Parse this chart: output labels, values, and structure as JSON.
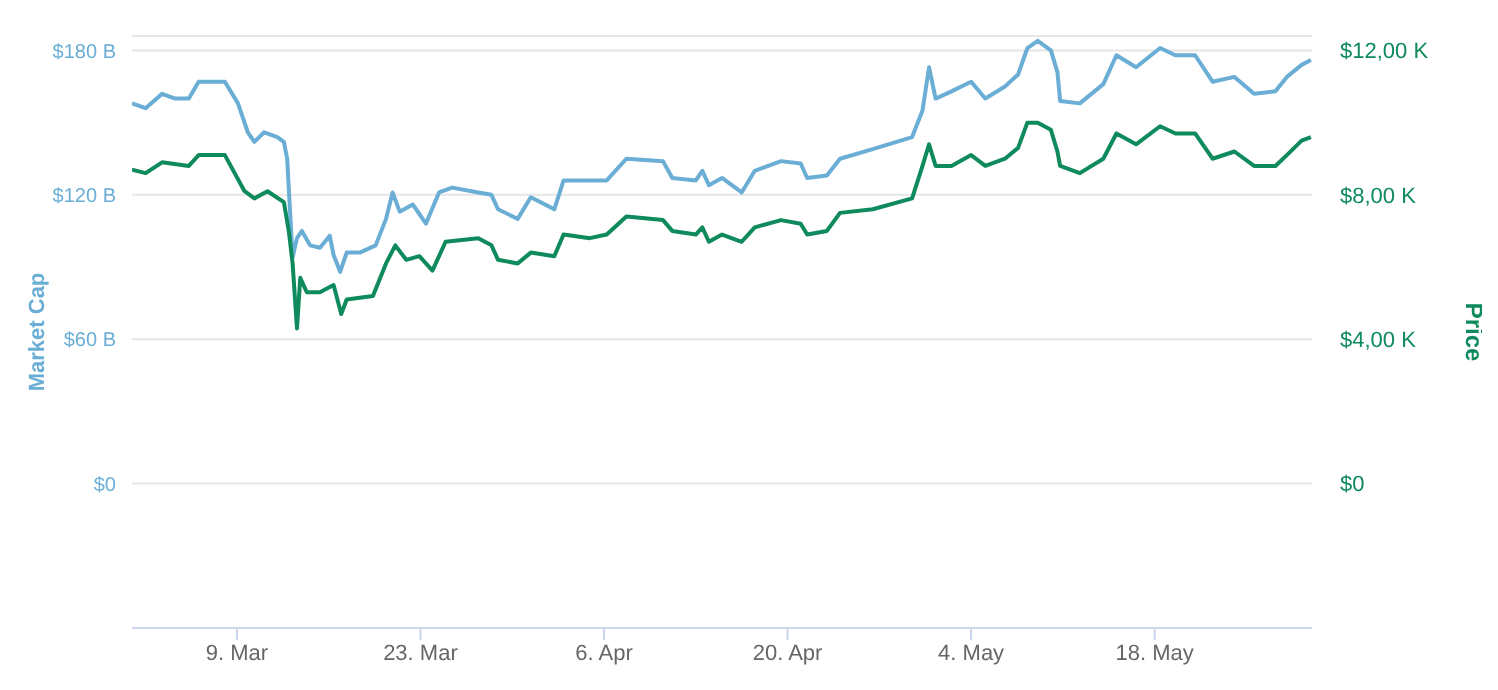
{
  "chart_data": {
    "type": "line",
    "ylabel": "Market Cap",
    "y2label": "Price",
    "xlim": [
      "--03-01",
      "--05-30"
    ],
    "xticks": [
      {
        "value": "--03-09",
        "label": "9. Mar"
      },
      {
        "value": "--03-23",
        "label": "23. Mar"
      },
      {
        "value": "--04-06",
        "label": "6. Apr"
      },
      {
        "value": "--04-20",
        "label": "20. Apr"
      },
      {
        "value": "--05-04",
        "label": "4. May"
      },
      {
        "value": "--05-18",
        "label": "18. May"
      }
    ],
    "ylim": [
      -60,
      186
    ],
    "yticks": [
      {
        "value": 0,
        "label": "$0"
      },
      {
        "value": 60,
        "label": "$60 B"
      },
      {
        "value": 120,
        "label": "$120 B"
      },
      {
        "value": 180,
        "label": "$180 B"
      }
    ],
    "y2lim": [
      -4,
      12.4
    ],
    "y2ticks": [
      {
        "value": 0,
        "label": "$0"
      },
      {
        "value": 4,
        "label": "$4,00 K"
      },
      {
        "value": 8,
        "label": "$8,00 K"
      },
      {
        "value": 12,
        "label": "$12,00 K"
      }
    ],
    "grid": "y",
    "legend": false,
    "marker": "none",
    "line_style": "solid",
    "series": [
      {
        "color": "#6aaed6",
        "x": [
          "--03-01T00:00",
          "--03-02T01:00",
          "--03-03T07:00",
          "--03-04T07:00",
          "--03-05T08:00",
          "--03-06T02:00",
          "--03-08T02:00",
          "--03-09T02:00",
          "--03-09T20:00",
          "--03-10T08:00",
          "--03-11T02:00",
          "--03-12T02:00",
          "--03-12T14:00",
          "--03-12T20:00",
          "--03-13T06:00",
          "--03-13T14:00",
          "--03-13T23:00",
          "--03-14T14:00",
          "--03-15T08:00",
          "--03-16T02:00",
          "--03-16T09:00",
          "--03-16T21:00",
          "--03-17T09:00",
          "--03-18T09:00",
          "--03-19T14:00",
          "--03-20T09:00",
          "--03-20T21:00",
          "--03-21T10:00",
          "--03-22T10:00",
          "--03-23T10:00",
          "--03-24T10:00",
          "--03-25T10:00",
          "--03-27T10:00",
          "--03-28T10:00",
          "--03-28T22:00",
          "--03-30T10:00",
          "--03-31T10:00",
          "--04-02T05:00",
          "--04-02T22:00",
          "--04-04T22:00",
          "--04-06T05:00",
          "--04-07T17:00",
          "--04-10T12:00",
          "--04-11T05:00",
          "--04-13T00:00",
          "--04-13T12:00",
          "--04-14T00:00",
          "--04-15T00:00",
          "--04-16T12:00",
          "--04-17T12:00",
          "--04-19T12:00",
          "--04-21T00:00",
          "--04-21T12:00",
          "--04-23T00:00",
          "--04-24T00:00",
          "--04-26T12:00",
          "--04-29T12:00",
          "--04-30T07:00",
          "--04-30T19:00",
          "--05-01T07:00",
          "--05-02T12:00",
          "--05-04T00:00",
          "--05-05T02:00",
          "--05-06T14:00",
          "--05-07T14:00",
          "--05-08T07:00",
          "--05-09T02:00",
          "--05-10T02:00",
          "--05-10T14:00",
          "--05-10T19:00",
          "--05-12T07:00",
          "--05-14T02:00",
          "--05-15T02:00",
          "--05-16T14:00",
          "--05-18T10:00",
          "--05-19T14:00",
          "--05-21T02:00",
          "--05-22T10:00",
          "--05-24T02:00",
          "--05-25T14:00",
          "--05-27T05:00",
          "--05-28T02:00",
          "--05-29T05:00",
          "--05-29T22:00"
        ],
        "values": [
          158,
          156,
          162,
          160,
          160,
          167,
          167,
          158,
          146,
          142,
          146,
          144,
          142,
          135,
          94,
          102,
          105,
          99,
          98,
          103,
          95,
          88,
          96,
          96,
          99,
          110,
          121,
          113,
          116,
          108,
          121,
          123,
          121,
          120,
          114,
          110,
          119,
          114,
          126,
          126,
          126,
          135,
          134,
          127,
          126,
          130,
          124,
          127,
          121,
          130,
          134,
          133,
          127,
          128,
          135,
          139,
          144,
          155,
          173,
          160,
          163,
          167,
          160,
          165,
          170,
          181,
          184,
          180,
          171,
          159,
          158,
          166,
          178,
          173,
          181,
          178,
          178,
          167,
          169,
          162,
          163,
          169,
          174,
          176
        ]
      },
      {
        "color": "#0f8a5c",
        "axis": "y2",
        "x": [
          "--03-01T00:00",
          "--03-02T01:00",
          "--03-03T07:00",
          "--03-05T08:00",
          "--03-06T02:00",
          "--03-08T02:00",
          "--03-09T14:00",
          "--03-10T08:00",
          "--03-11T08:00",
          "--03-12T14:00",
          "--03-12T23:00",
          "--03-13T06:00",
          "--03-13T14:00",
          "--03-13T20:00",
          "--03-14T08:00",
          "--03-15T08:00",
          "--03-16T09:00",
          "--03-16T23:00",
          "--03-17T09:00",
          "--03-19T09:00",
          "--03-20T09:00",
          "--03-21T02:00",
          "--03-21T22:00",
          "--03-22T22:00",
          "--03-23T22:00",
          "--03-24T22:00",
          "--03-27T10:00",
          "--03-28T10:00",
          "--03-28T22:00",
          "--03-30T10:00",
          "--03-31T10:00",
          "--04-02T05:00",
          "--04-02T22:00",
          "--04-04T22:00",
          "--04-06T05:00",
          "--04-07T17:00",
          "--04-10T12:00",
          "--04-11T05:00",
          "--04-13T00:00",
          "--04-13T12:00",
          "--04-14T00:00",
          "--04-15T00:00",
          "--04-16T12:00",
          "--04-17T12:00",
          "--04-19T12:00",
          "--04-21T00:00",
          "--04-21T12:00",
          "--04-23T00:00",
          "--04-24T00:00",
          "--04-26T12:00",
          "--04-29T12:00",
          "--04-30T07:00",
          "--04-30T19:00",
          "--05-01T07:00",
          "--05-02T12:00",
          "--05-04T00:00",
          "--05-05T02:00",
          "--05-06T14:00",
          "--05-07T14:00",
          "--05-08T07:00",
          "--05-09T02:00",
          "--05-10T02:00",
          "--05-10T14:00",
          "--05-10T19:00",
          "--05-12T07:00",
          "--05-14T02:00",
          "--05-15T02:00",
          "--05-16T14:00",
          "--05-18T10:00",
          "--05-19T14:00",
          "--05-21T02:00",
          "--05-22T10:00",
          "--05-24T02:00",
          "--05-25T14:00",
          "--05-27T05:00",
          "--05-28T02:00",
          "--05-29T05:00",
          "--05-29T22:00"
        ],
        "values": [
          8.7,
          8.6,
          8.9,
          8.8,
          9.1,
          9.1,
          8.1,
          7.9,
          8.1,
          7.8,
          7.0,
          6.1,
          4.3,
          5.7,
          5.3,
          5.3,
          5.5,
          4.7,
          5.1,
          5.2,
          6.1,
          6.6,
          6.2,
          6.3,
          5.9,
          6.7,
          6.8,
          6.6,
          6.2,
          6.1,
          6.4,
          6.3,
          6.9,
          6.8,
          6.9,
          7.4,
          7.3,
          7.0,
          6.9,
          7.1,
          6.7,
          6.9,
          6.7,
          7.1,
          7.3,
          7.2,
          6.9,
          7.0,
          7.5,
          7.6,
          7.9,
          8.8,
          9.4,
          8.8,
          8.8,
          9.1,
          8.8,
          9.0,
          9.3,
          10.0,
          10.0,
          9.8,
          9.2,
          8.8,
          8.6,
          9.0,
          9.7,
          9.4,
          9.9,
          9.7,
          9.7,
          9.0,
          9.2,
          8.8,
          8.8,
          9.1,
          9.5,
          9.6
        ]
      }
    ]
  }
}
